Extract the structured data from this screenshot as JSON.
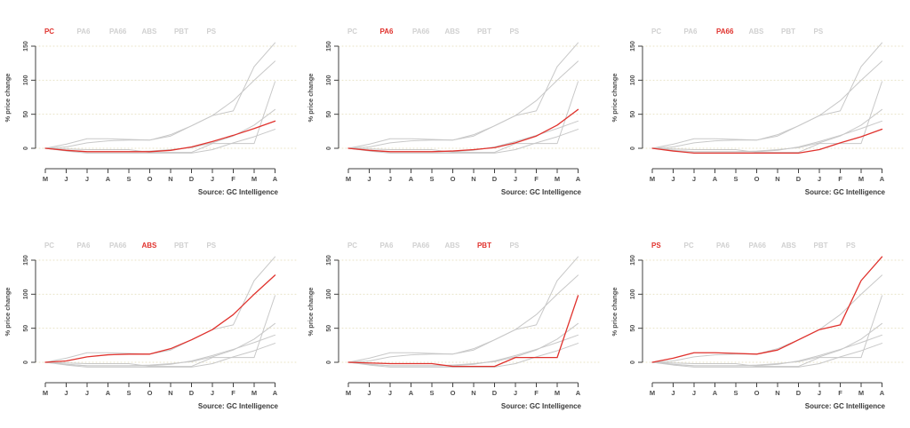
{
  "page": {
    "background": "#ffffff"
  },
  "colors": {
    "highlight": "#e0322d",
    "muted_line": "#c8c8c8",
    "legend_muted": "#d0d0d0",
    "grid": "#e8e2c6",
    "axis": "#404040",
    "tick_text": "#4d4d4d",
    "source_text": "#3a3a3a"
  },
  "chart_data": {
    "type": "line",
    "layout": {
      "rows": 2,
      "cols": 3,
      "description": "six small-multiple line charts, one series highlighted red per panel"
    },
    "categories": [
      "M",
      "J",
      "J",
      "A",
      "S",
      "O",
      "N",
      "D",
      "J",
      "F",
      "M",
      "A"
    ],
    "series": [
      {
        "name": "PC",
        "values": [
          0,
          -3,
          -5,
          -5,
          -5,
          -5,
          -3,
          2,
          10,
          19,
          29,
          40
        ]
      },
      {
        "name": "PA6",
        "values": [
          0,
          -3,
          -5,
          -5,
          -5,
          -4,
          -2,
          1,
          8,
          18,
          34,
          57
        ]
      },
      {
        "name": "PA66",
        "values": [
          0,
          -4,
          -7,
          -7,
          -7,
          -7,
          -7,
          -7,
          -2,
          8,
          17,
          28
        ]
      },
      {
        "name": "ABS",
        "values": [
          0,
          2,
          8,
          11,
          12,
          12,
          20,
          33,
          48,
          70,
          100,
          128
        ]
      },
      {
        "name": "PBT",
        "values": [
          0,
          -1,
          -2,
          -2,
          -2,
          -6,
          -6,
          -6,
          7,
          7,
          7,
          98
        ]
      },
      {
        "name": "PS",
        "values": [
          0,
          6,
          14,
          14,
          13,
          12,
          18,
          33,
          48,
          55,
          120,
          155
        ]
      }
    ],
    "ylabel": "% price change",
    "yticks": [
      0,
      50,
      100,
      150
    ],
    "ylim": [
      -20,
      160
    ],
    "grid": "dotted horizontal gridlines at y ticks",
    "legend_position": "top",
    "source": "Source: GC Intelligence",
    "panels": [
      {
        "highlight": "PC",
        "legend": [
          "PC",
          "PA6",
          "PA66",
          "ABS",
          "PBT",
          "PS"
        ]
      },
      {
        "highlight": "PA6",
        "legend": [
          "PC",
          "PA6",
          "PA66",
          "ABS",
          "PBT",
          "PS"
        ]
      },
      {
        "highlight": "PA66",
        "legend": [
          "PC",
          "PA6",
          "PA66",
          "ABS",
          "PBT",
          "PS"
        ]
      },
      {
        "highlight": "ABS",
        "legend": [
          "PC",
          "PA6",
          "PA66",
          "ABS",
          "PBT",
          "PS"
        ]
      },
      {
        "highlight": "PBT",
        "legend": [
          "PC",
          "PA6",
          "PA66",
          "ABS",
          "PBT",
          "PS"
        ]
      },
      {
        "highlight": "PS",
        "legend": [
          "PS",
          "PC",
          "PA6",
          "PA66",
          "ABS",
          "PBT",
          "PS"
        ]
      }
    ]
  }
}
